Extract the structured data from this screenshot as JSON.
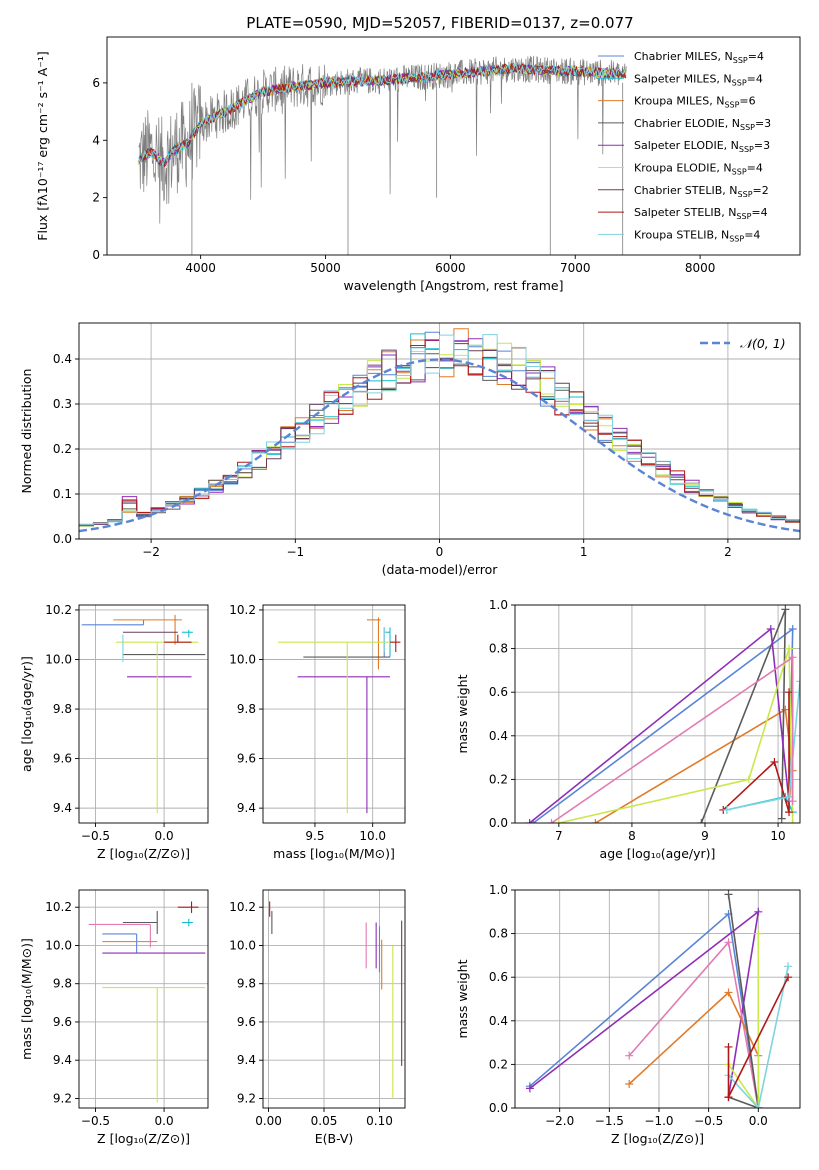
{
  "figure": {
    "title": "PLATE=0590, MJD=52057, FIBERID=0137, z=0.077"
  },
  "colors": {
    "Chabrier MILES": "#5a84d6",
    "Salpeter MILES": "#17becf",
    "Kroupa MILES": "#e07b2a",
    "Chabrier ELODIE": "#5b5b5b",
    "Salpeter ELODIE": "#8e2eb8",
    "Kroupa ELODIE": "#c9e84a",
    "Chabrier STELIB": "#6a3d5a",
    "Salpeter STELIB": "#b01818",
    "Kroupa STELIB": "#7fd3e0",
    "data": "#7f7f7f",
    "pink": "#e07bb4",
    "green": "#4a9d4a"
  },
  "chart_data": [
    {
      "id": "spectrum",
      "type": "line",
      "title": "PLATE=0590, MJD=52057, FIBERID=0137, z=0.077",
      "xlabel": "wavelength [Angstrom, rest frame]",
      "ylabel": "Flux [fλ10⁻¹⁷ erg cm⁻² s⁻¹ A⁻¹]",
      "xlim": [
        3250,
        8800
      ],
      "ylim": [
        0,
        7.6
      ],
      "xticks": [
        4000,
        5000,
        6000,
        7000,
        8000
      ],
      "yticks": [
        0,
        2,
        4,
        6
      ],
      "legend_position": "right",
      "legend": [
        {
          "label": "Chabrier MILES, N",
          "sub": "SSP",
          "suffix": "=4"
        },
        {
          "label": "Salpeter MILES, N",
          "sub": "SSP",
          "suffix": "=4"
        },
        {
          "label": "Kroupa MILES, N",
          "sub": "SSP",
          "suffix": "=6"
        },
        {
          "label": "Chabrier ELODIE, N",
          "sub": "SSP",
          "suffix": "=3"
        },
        {
          "label": "Salpeter ELODIE, N",
          "sub": "SSP",
          "suffix": "=3"
        },
        {
          "label": "Kroupa ELODIE, N",
          "sub": "SSP",
          "suffix": "=4"
        },
        {
          "label": "Chabrier STELIB, N",
          "sub": "SSP",
          "suffix": "=2"
        },
        {
          "label": "Salpeter STELIB, N",
          "sub": "SSP",
          "suffix": "=4"
        },
        {
          "label": "Kroupa STELIB, N",
          "sub": "SSP",
          "suffix": "=4"
        }
      ],
      "continuum": [
        [
          3500,
          3.3
        ],
        [
          3600,
          3.6
        ],
        [
          3700,
          3.2
        ],
        [
          3800,
          3.7
        ],
        [
          3900,
          3.9
        ],
        [
          4000,
          4.6
        ],
        [
          4200,
          5.0
        ],
        [
          4500,
          5.7
        ],
        [
          4800,
          5.9
        ],
        [
          5000,
          6.0
        ],
        [
          5500,
          6.1
        ],
        [
          6000,
          6.3
        ],
        [
          6500,
          6.5
        ],
        [
          7000,
          6.4
        ],
        [
          7400,
          6.3
        ]
      ]
    },
    {
      "id": "residuals",
      "type": "histogram",
      "xlabel": "(data-model)/error",
      "ylabel": "Normed distribution",
      "xlim": [
        -2.5,
        2.5
      ],
      "ylim": [
        0,
        0.48
      ],
      "xticks": [
        -2,
        -1,
        0,
        1,
        2
      ],
      "yticks": [
        0.0,
        0.1,
        0.2,
        0.3,
        0.4
      ],
      "legend_position": "upper right",
      "reference_label": "𝒩(0, 1)",
      "bins": 50
    },
    {
      "id": "age-vs-Z",
      "type": "errorbar",
      "xlabel": "Z [log₁₀(Z/Z⊙)]",
      "ylabel": "age  [log₁₀(age/yr)]",
      "xlim": [
        -0.62,
        0.32
      ],
      "ylim": [
        9.34,
        10.22
      ],
      "xticks": [
        -0.5,
        0.0
      ],
      "yticks": [
        9.4,
        9.6,
        9.8,
        10.0,
        10.2
      ],
      "points": [
        {
          "series": "Chabrier MILES",
          "x": -0.15,
          "y": 10.14,
          "xerr": [
            0.45,
            0.0
          ],
          "yerr": [
            0.0,
            0.02
          ]
        },
        {
          "series": "Salpeter MILES",
          "x": 0.18,
          "y": 10.11,
          "xerr": [
            0.05,
            0.03
          ],
          "yerr": [
            0.02,
            0.01
          ]
        },
        {
          "series": "Kroupa MILES",
          "x": 0.08,
          "y": 10.16,
          "xerr": [
            0.45,
            0.05
          ],
          "yerr": [
            0.1,
            0.02
          ]
        },
        {
          "series": "Chabrier ELODIE",
          "x": 0.1,
          "y": 10.02,
          "xerr": [
            0.4,
            0.2
          ],
          "yerr": [
            0.0,
            0.0
          ]
        },
        {
          "series": "Salpeter ELODIE",
          "x": -0.05,
          "y": 9.93,
          "xerr": [
            0.22,
            0.25
          ],
          "yerr": [
            0.0,
            0.0
          ]
        },
        {
          "series": "Kroupa ELODIE",
          "x": -0.05,
          "y": 10.07,
          "xerr": [
            0.3,
            0.3
          ],
          "yerr": [
            0.69,
            0.0
          ]
        },
        {
          "series": "Chabrier STELIB",
          "x": -0.1,
          "y": 10.11,
          "xerr": [
            0.2,
            0.2
          ],
          "yerr": [
            0.0,
            0.0
          ]
        },
        {
          "series": "Salpeter STELIB",
          "x": 0.1,
          "y": 10.07,
          "xerr": [
            0.1,
            0.1
          ],
          "yerr": [
            0.0,
            0.03
          ]
        },
        {
          "series": "Kroupa STELIB",
          "x": -0.3,
          "y": 10.07,
          "xerr": [
            0.0,
            0.0
          ],
          "yerr": [
            0.08,
            0.03
          ]
        }
      ]
    },
    {
      "id": "age-vs-mass",
      "type": "errorbar",
      "xlabel": "mass [log₁₀(M/M⊙)]",
      "ylabel": "",
      "xlim": [
        9.05,
        10.28
      ],
      "ylim": [
        9.34,
        10.22
      ],
      "xticks": [
        9.5,
        10.0
      ],
      "yticks": [
        9.4,
        9.6,
        9.8,
        10.0,
        10.2
      ],
      "points": [
        {
          "series": "Chabrier MILES",
          "x": 10.1,
          "y": 10.11,
          "xerr": [
            0.0,
            0.02
          ],
          "yerr": [
            0.1,
            0.02
          ]
        },
        {
          "series": "Salpeter MILES",
          "x": 10.15,
          "y": 10.11,
          "xerr": [
            0.05,
            0.0
          ],
          "yerr": [
            0.1,
            0.02
          ]
        },
        {
          "series": "Kroupa MILES",
          "x": 10.05,
          "y": 10.16,
          "xerr": [
            0.1,
            0.02
          ],
          "yerr": [
            0.2,
            0.01
          ]
        },
        {
          "series": "Chabrier ELODIE",
          "x": 10.15,
          "y": 10.01,
          "xerr": [
            0.75,
            0.0
          ],
          "yerr": [
            0.0,
            0.0
          ]
        },
        {
          "series": "Salpeter ELODIE",
          "x": 9.95,
          "y": 9.93,
          "xerr": [
            0.6,
            0.2
          ],
          "yerr": [
            0.55,
            0.0
          ]
        },
        {
          "series": "Kroupa ELODIE",
          "x": 9.78,
          "y": 10.07,
          "xerr": [
            0.6,
            0.4
          ],
          "yerr": [
            0.69,
            0.0
          ]
        },
        {
          "series": "Salpeter STELIB",
          "x": 10.2,
          "y": 10.07,
          "xerr": [
            0.05,
            0.04
          ],
          "yerr": [
            0.04,
            0.03
          ]
        },
        {
          "series": "Kroupa STELIB",
          "x": 10.1,
          "y": 10.11,
          "xerr": [
            0.0,
            0.02
          ],
          "yerr": [
            0.08,
            0.02
          ]
        }
      ]
    },
    {
      "id": "mass-weight-vs-age",
      "type": "line",
      "xlabel": "age  [log₁₀(age/yr)]",
      "ylabel": "mass weight",
      "xlim": [
        6.4,
        10.3
      ],
      "ylim": [
        0,
        1.0
      ],
      "xticks": [
        7,
        8,
        9,
        10
      ],
      "yticks": [
        0.0,
        0.2,
        0.4,
        0.6,
        0.8,
        1.0
      ],
      "series": [
        {
          "name": "Chabrier MILES",
          "points": [
            [
              6.65,
              0.0
            ],
            [
              10.2,
              0.89
            ],
            [
              10.15,
              0.12
            ]
          ]
        },
        {
          "name": "Salpeter MILES",
          "points": [
            [
              9.3,
              0.06
            ],
            [
              10.1,
              0.12
            ],
            [
              10.2,
              0.05
            ]
          ]
        },
        {
          "name": "Kroupa MILES",
          "points": [
            [
              7.5,
              0.0
            ],
            [
              10.1,
              0.52
            ],
            [
              10.2,
              0.24
            ],
            [
              10.15,
              0.1
            ]
          ]
        },
        {
          "name": "Chabrier ELODIE",
          "points": [
            [
              8.95,
              0.0
            ],
            [
              10.1,
              0.98
            ],
            [
              10.05,
              0.02
            ]
          ]
        },
        {
          "name": "Salpeter ELODIE",
          "points": [
            [
              6.6,
              0.0
            ],
            [
              9.9,
              0.89
            ],
            [
              10.15,
              0.1
            ]
          ]
        },
        {
          "name": "Kroupa ELODIE",
          "points": [
            [
              7.0,
              0.0
            ],
            [
              9.6,
              0.2
            ],
            [
              10.15,
              0.8
            ],
            [
              10.2,
              0.0
            ]
          ]
        },
        {
          "name": "Salpeter STELIB",
          "points": [
            [
              9.25,
              0.06
            ],
            [
              9.95,
              0.28
            ],
            [
              10.15,
              0.05
            ],
            [
              10.15,
              0.6
            ]
          ]
        },
        {
          "name": "Kroupa STELIB",
          "points": [
            [
              9.3,
              0.06
            ],
            [
              10.15,
              0.12
            ],
            [
              10.3,
              0.65
            ]
          ]
        },
        {
          "name": "pink",
          "points": [
            [
              6.9,
              0.0
            ],
            [
              10.2,
              0.76
            ],
            [
              10.2,
              0.1
            ]
          ]
        }
      ]
    },
    {
      "id": "mass-vs-Z",
      "type": "errorbar",
      "xlabel": "Z [log₁₀(Z/Z⊙)]",
      "ylabel": "mass [log₁₀(M/M⊙)]",
      "xlim": [
        -0.62,
        0.32
      ],
      "ylim": [
        9.15,
        10.29
      ],
      "xticks": [
        -0.5,
        0.0
      ],
      "yticks": [
        9.2,
        9.4,
        9.6,
        9.8,
        10.0,
        10.2
      ],
      "points": [
        {
          "series": "Salpeter STELIB",
          "x": 0.2,
          "y": 10.2,
          "xerr": [
            0.1,
            0.05
          ],
          "yerr": [
            0.03,
            0.03
          ]
        },
        {
          "series": "Salpeter MILES",
          "x": 0.18,
          "y": 10.12,
          "xerr": [
            0.05,
            0.03
          ],
          "yerr": [
            0.02,
            0.02
          ]
        },
        {
          "series": "Chabrier ELODIE",
          "x": -0.05,
          "y": 10.12,
          "xerr": [
            0.25,
            0.0
          ],
          "yerr": [
            0.06,
            0.06
          ]
        },
        {
          "series": "pink",
          "x": -0.1,
          "y": 10.11,
          "xerr": [
            0.45,
            0.0
          ],
          "yerr": [
            0.12,
            0.0
          ]
        },
        {
          "series": "Chabrier MILES",
          "x": -0.2,
          "y": 10.06,
          "xerr": [
            0.25,
            0.0
          ],
          "yerr": [
            0.1,
            0.0
          ]
        },
        {
          "series": "Kroupa MILES",
          "x": -0.1,
          "y": 10.02,
          "xerr": [
            0.35,
            0.05
          ],
          "yerr": [
            0.0,
            0.0
          ]
        },
        {
          "series": "Salpeter ELODIE",
          "x": -0.1,
          "y": 9.96,
          "xerr": [
            0.35,
            0.4
          ],
          "yerr": [
            0.0,
            0.0
          ]
        },
        {
          "series": "Kroupa ELODIE",
          "x": -0.05,
          "y": 9.78,
          "xerr": [
            0.4,
            0.35
          ],
          "yerr": [
            0.6,
            0.0
          ]
        }
      ]
    },
    {
      "id": "mass-vs-EBV",
      "type": "errorbar",
      "xlabel": "E(B-V)",
      "ylabel": "",
      "xlim": [
        -0.005,
        0.123
      ],
      "ylim": [
        9.15,
        10.29
      ],
      "xticks": [
        0.0,
        0.05,
        0.1
      ],
      "yticks": [
        9.2,
        9.4,
        9.6,
        9.8,
        10.0,
        10.2
      ],
      "points": [
        {
          "series": "Salpeter STELIB",
          "x": 0.001,
          "y": 10.2,
          "yerr": [
            0.05,
            0.03
          ]
        },
        {
          "series": "Chabrier ELODIE",
          "x": 0.003,
          "y": 10.12,
          "yerr": [
            0.06,
            0.06
          ]
        },
        {
          "series": "pink",
          "x": 0.088,
          "y": 10.0,
          "yerr": [
            0.12,
            0.12
          ]
        },
        {
          "series": "Salpeter ELODIE",
          "x": 0.097,
          "y": 10.0,
          "yerr": [
            0.12,
            0.12
          ]
        },
        {
          "series": "Chabrier MILES",
          "x": 0.1,
          "y": 9.98,
          "yerr": [
            0.12,
            0.12
          ]
        },
        {
          "series": "Kroupa MILES",
          "x": 0.102,
          "y": 9.9,
          "yerr": [
            0.13,
            0.13
          ]
        },
        {
          "series": "Kroupa ELODIE",
          "x": 0.112,
          "y": 9.6,
          "yerr": [
            0.4,
            0.4
          ]
        },
        {
          "series": "Chabrier STELIB",
          "x": 0.12,
          "y": 9.75,
          "yerr": [
            0.38,
            0.38
          ]
        }
      ]
    },
    {
      "id": "mass-weight-vs-Z",
      "type": "line",
      "xlabel": "Z [log₁₀(Z/Z⊙)]",
      "ylabel": "mass weight",
      "xlim": [
        -2.45,
        0.42
      ],
      "ylim": [
        0,
        1.0
      ],
      "xticks": [
        -2.0,
        -1.5,
        -1.0,
        -0.5,
        0.0
      ],
      "yticks": [
        0.0,
        0.2,
        0.4,
        0.6,
        0.8,
        1.0
      ],
      "series": [
        {
          "name": "Chabrier MILES",
          "points": [
            [
              -2.3,
              0.1
            ],
            [
              -0.3,
              0.89
            ],
            [
              0.0,
              0.0
            ]
          ]
        },
        {
          "name": "Salpeter ELODIE",
          "points": [
            [
              -2.3,
              0.09
            ],
            [
              0.0,
              0.9
            ],
            [
              -0.3,
              0.05
            ]
          ]
        },
        {
          "name": "pink",
          "points": [
            [
              -1.3,
              0.24
            ],
            [
              -0.3,
              0.76
            ],
            [
              0.0,
              0.0
            ]
          ]
        },
        {
          "name": "Kroupa MILES",
          "points": [
            [
              -1.3,
              0.11
            ],
            [
              -0.3,
              0.53
            ],
            [
              0.0,
              0.24
            ],
            [
              0.0,
              0.0
            ]
          ]
        },
        {
          "name": "Chabrier ELODIE",
          "points": [
            [
              -0.3,
              0.98
            ],
            [
              0.0,
              0.0
            ],
            [
              -0.3,
              0.05
            ]
          ]
        },
        {
          "name": "Kroupa ELODIE",
          "points": [
            [
              0.0,
              0.8
            ],
            [
              0.0,
              0.0
            ],
            [
              -0.3,
              0.2
            ]
          ]
        },
        {
          "name": "Kroupa STELIB",
          "points": [
            [
              -0.3,
              0.15
            ],
            [
              0.0,
              0.0
            ],
            [
              0.3,
              0.65
            ]
          ]
        },
        {
          "name": "Salpeter STELIB",
          "points": [
            [
              -0.3,
              0.28
            ],
            [
              -0.3,
              0.05
            ],
            [
              0.3,
              0.6
            ]
          ]
        }
      ]
    }
  ]
}
